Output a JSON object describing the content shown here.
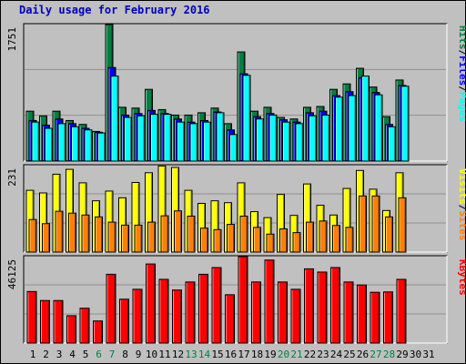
{
  "title": "Daily usage for February 2016",
  "colors": {
    "hits": "#008040",
    "files": "#0000ff",
    "pages": "#00ffff",
    "visits": "#ffff00",
    "sites": "#ff8000",
    "kbytes": "#ff0000",
    "weekend_label": "#008040",
    "weekday_label": "#000000",
    "plot_bg": "#c0c0c0"
  },
  "chart_data": [
    {
      "type": "bar",
      "name": "hits-files-pages",
      "ymax_label": "1751",
      "ylim": [
        0,
        1751
      ],
      "legend": [
        "Pages",
        "Files",
        "Hits"
      ],
      "weekend_days": [
        6,
        7,
        13,
        14,
        20,
        21,
        27,
        28
      ],
      "categories": [
        "1",
        "2",
        "3",
        "4",
        "5",
        "6",
        "7",
        "8",
        "9",
        "10",
        "11",
        "12",
        "13",
        "14",
        "15",
        "16",
        "17",
        "18",
        "19",
        "20",
        "21",
        "22",
        "23",
        "24",
        "25",
        "26",
        "27",
        "28",
        "29",
        "30",
        "31"
      ],
      "series": [
        {
          "name": "Hits",
          "values": [
            640,
            580,
            640,
            520,
            470,
            380,
            1751,
            690,
            680,
            920,
            660,
            590,
            590,
            620,
            680,
            480,
            1400,
            640,
            690,
            560,
            540,
            690,
            700,
            920,
            990,
            1190,
            950,
            570,
            1040,
            0,
            0
          ]
        },
        {
          "name": "Files",
          "values": [
            520,
            460,
            540,
            480,
            420,
            370,
            1200,
            590,
            610,
            650,
            610,
            540,
            500,
            520,
            630,
            400,
            1120,
            570,
            610,
            530,
            500,
            620,
            640,
            840,
            890,
            1070,
            880,
            470,
            970,
            0,
            0
          ]
        },
        {
          "name": "Pages",
          "values": [
            500,
            420,
            480,
            440,
            400,
            360,
            1090,
            560,
            580,
            600,
            600,
            500,
            480,
            500,
            620,
            340,
            1100,
            540,
            590,
            500,
            480,
            580,
            590,
            820,
            840,
            1090,
            850,
            440,
            960,
            0,
            0
          ]
        }
      ]
    },
    {
      "type": "bar",
      "name": "visits-sites",
      "ymax_label": "231",
      "ylim": [
        0,
        231
      ],
      "legend": [
        "Sites",
        "Visits"
      ],
      "categories": [
        "1",
        "2",
        "3",
        "4",
        "5",
        "6",
        "7",
        "8",
        "9",
        "10",
        "11",
        "12",
        "13",
        "14",
        "15",
        "16",
        "17",
        "18",
        "19",
        "20",
        "21",
        "22",
        "23",
        "24",
        "25",
        "26",
        "27",
        "28",
        "29",
        "30",
        "31"
      ],
      "series": [
        {
          "name": "Visits",
          "values": [
            165,
            158,
            208,
            221,
            185,
            137,
            163,
            145,
            186,
            212,
            230,
            226,
            165,
            130,
            137,
            132,
            185,
            108,
            92,
            154,
            98,
            182,
            125,
            99,
            170,
            218,
            168,
            111,
            212,
            0,
            0
          ]
        },
        {
          "name": "Sites",
          "values": [
            87,
            76,
            109,
            104,
            99,
            94,
            80,
            72,
            72,
            80,
            97,
            110,
            96,
            64,
            60,
            74,
            96,
            66,
            48,
            62,
            52,
            80,
            83,
            71,
            66,
            150,
            150,
            94,
            145,
            0,
            0
          ]
        }
      ]
    },
    {
      "type": "bar",
      "name": "kbytes",
      "ymax_label": "46125",
      "ylim": [
        0,
        46125
      ],
      "legend": [
        "KBytes"
      ],
      "categories": [
        "1",
        "2",
        "3",
        "4",
        "5",
        "6",
        "7",
        "8",
        "9",
        "10",
        "11",
        "12",
        "13",
        "14",
        "15",
        "16",
        "17",
        "18",
        "19",
        "20",
        "21",
        "22",
        "23",
        "24",
        "25",
        "26",
        "27",
        "28",
        "29",
        "30",
        "31"
      ],
      "series": [
        {
          "name": "KBytes",
          "values": [
            27500,
            22700,
            22700,
            14600,
            18600,
            11800,
            36700,
            23400,
            28700,
            42200,
            34000,
            28300,
            32600,
            36700,
            40300,
            25800,
            46125,
            32600,
            44300,
            32600,
            28700,
            39600,
            37900,
            40300,
            32600,
            31000,
            27100,
            27300,
            34000,
            0,
            0
          ]
        }
      ]
    }
  ]
}
